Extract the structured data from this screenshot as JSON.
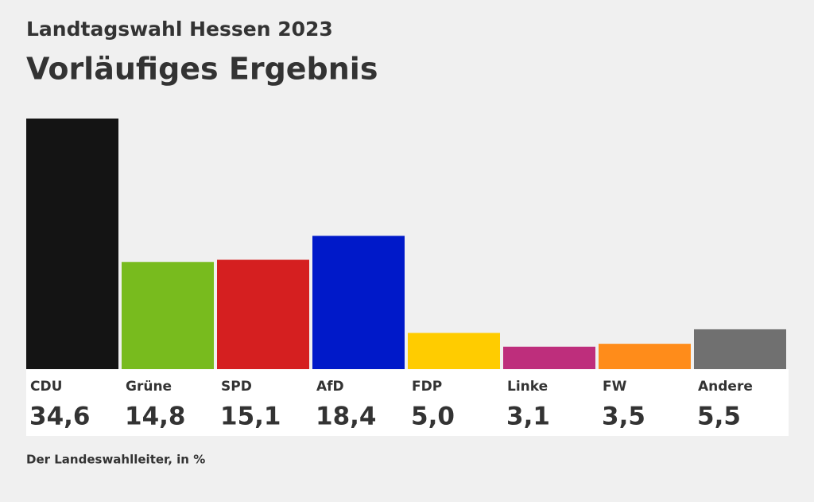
{
  "chart_data": {
    "type": "bar",
    "subtitle": "Landtagswahl Hessen 2023",
    "title": "Vorläufiges Ergebnis",
    "categories": [
      "CDU",
      "Grüne",
      "SPD",
      "AfD",
      "FDP",
      "Linke",
      "FW",
      "Andere"
    ],
    "values": [
      34.6,
      14.8,
      15.1,
      18.4,
      5.0,
      3.1,
      3.5,
      5.5
    ],
    "value_labels": [
      "34,6",
      "14,8",
      "15,1",
      "18,4",
      "5,0",
      "3,1",
      "3,5",
      "5,5"
    ],
    "colors": [
      "#141414",
      "#78bb1e",
      "#d51f20",
      "#0019c9",
      "#ffcc00",
      "#be2e7c",
      "#ff8c1a",
      "#707070"
    ],
    "source": "Der Landeswahlleiter, in %"
  }
}
